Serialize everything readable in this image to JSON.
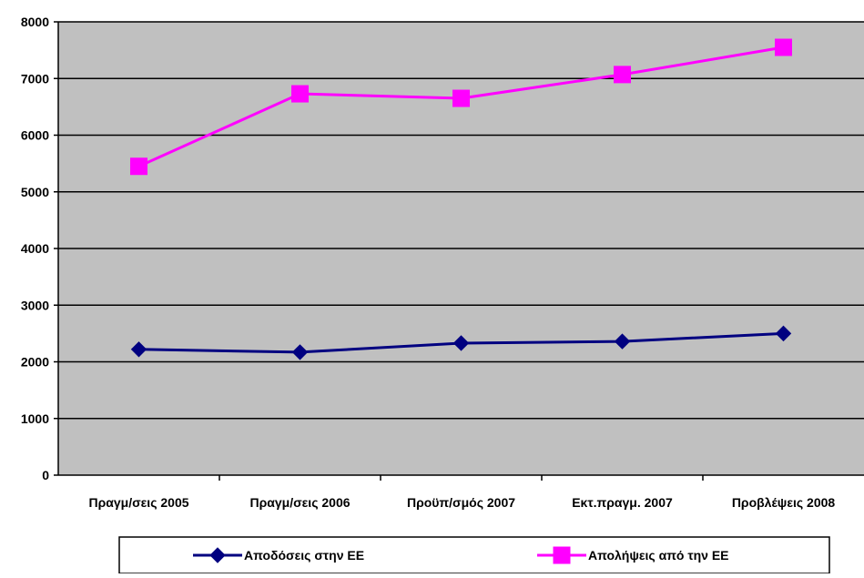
{
  "chart_data": {
    "type": "line",
    "categories": [
      "Πραγμ/σεις 2005",
      "Πραγμ/σεις 2006",
      "Προϋπ/σμός 2007",
      "Εκτ.πραγμ. 2007",
      "Προβλέψεις 2008"
    ],
    "series": [
      {
        "name": "Αποδόσεις στην ΕΕ",
        "values": [
          2220,
          2170,
          2330,
          2360,
          2500
        ],
        "color": "#000080",
        "marker": "diamond"
      },
      {
        "name": "Απολήψεις από την ΕΕ",
        "values": [
          5450,
          6730,
          6650,
          7070,
          7550
        ],
        "color": "#ff00ff",
        "marker": "square"
      }
    ],
    "ylim": [
      0,
      8000
    ],
    "yticks": [
      0,
      1000,
      2000,
      3000,
      4000,
      5000,
      6000,
      7000,
      8000
    ],
    "grid": true,
    "plot_background": "#c0c0c0",
    "legend_position": "bottom"
  }
}
